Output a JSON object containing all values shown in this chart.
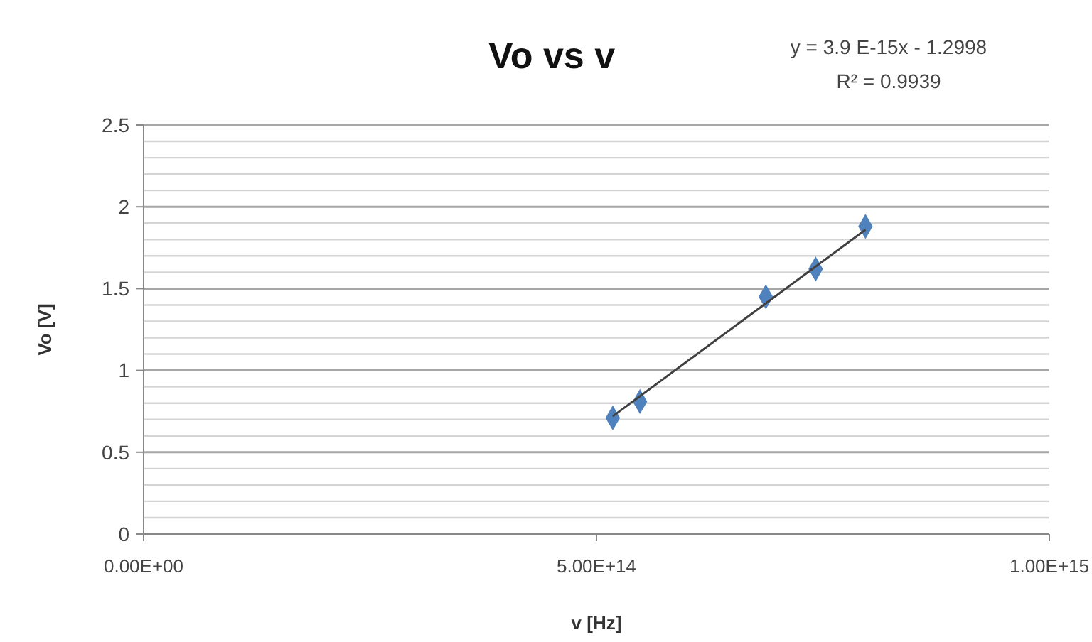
{
  "chart_data": {
    "type": "scatter",
    "title": "Vo vs v",
    "xlabel": "v [Hz]",
    "ylabel": "Vo [V]",
    "annotations": [
      "y = 3.9 E-15x - 1.2998",
      "R² = 0.9939"
    ],
    "series": [
      {
        "color": "#4f81bd",
        "marker": "diamond",
        "x": [
          518000000000000.0,
          548000000000000.0,
          687000000000000.0,
          742000000000000.0,
          797000000000000.0
        ],
        "values": [
          0.71,
          0.81,
          1.45,
          1.62,
          1.88
        ]
      },
      {
        "type": "line",
        "color": "#404040",
        "marker": "none",
        "line_style": "solid",
        "x": [
          518000000000000.0,
          797000000000000.0
        ],
        "values": [
          0.72,
          1.86
        ]
      }
    ],
    "xlim": [
      0,
      1000000000000000.0
    ],
    "xticks": [
      {
        "value": 0,
        "label": "0.00E+00"
      },
      {
        "value": 500000000000000.0,
        "label": "5.00E+14"
      },
      {
        "value": 1000000000000000.0,
        "label": "1.00E+15"
      }
    ],
    "ylim": [
      0,
      2.5
    ],
    "yticks": [
      0,
      {
        "value": 0.1,
        "label": null
      },
      {
        "value": 0.2,
        "label": null
      },
      {
        "value": 0.3,
        "label": null
      },
      {
        "value": 0.4,
        "label": null
      },
      0.5,
      {
        "value": 0.6,
        "label": null
      },
      {
        "value": 0.7,
        "label": null
      },
      {
        "value": 0.8,
        "label": null
      },
      {
        "value": 0.9,
        "label": null
      },
      1,
      {
        "value": 1.1,
        "label": null
      },
      {
        "value": 1.2,
        "label": null
      },
      {
        "value": 1.3,
        "label": null
      },
      {
        "value": 1.4,
        "label": null
      },
      1.5,
      {
        "value": 1.6,
        "label": null
      },
      {
        "value": 1.7,
        "label": null
      },
      {
        "value": 1.8,
        "label": null
      },
      {
        "value": 1.9,
        "label": null
      },
      2,
      {
        "value": 2.1,
        "label": null
      },
      {
        "value": 2.2,
        "label": null
      },
      {
        "value": 2.3,
        "label": null
      },
      {
        "value": 2.4,
        "label": null
      },
      2.5
    ],
    "grid": "y"
  }
}
